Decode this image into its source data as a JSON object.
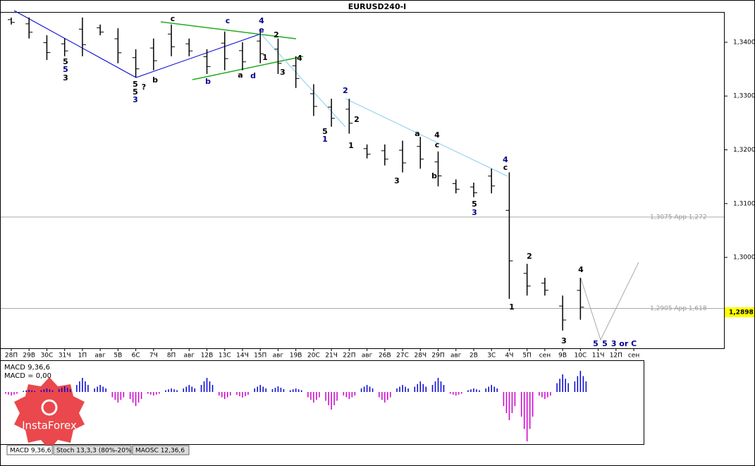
{
  "chart_data": {
    "type": "ohlc",
    "title": "EURUSD240-I",
    "categories": [
      "28П",
      "29В",
      "30С",
      "31Ч",
      "1П",
      "авг",
      "5В",
      "6С",
      "7Ч",
      "8П",
      "авг",
      "12В",
      "13С",
      "14Ч",
      "15П",
      "авг",
      "19В",
      "20С",
      "21Ч",
      "22П",
      "авг",
      "26В",
      "27С",
      "28Ч",
      "29П",
      "авг",
      "2В",
      "3С",
      "4Ч",
      "5П",
      "сен",
      "9В",
      "10С",
      "11Ч",
      "12П",
      "сен"
    ],
    "high": [
      1.3446,
      1.3446,
      1.3413,
      1.3407,
      1.3446,
      1.3433,
      1.3426,
      1.3387,
      1.3407,
      1.3433,
      1.3407,
      1.3387,
      1.342,
      1.34,
      1.342,
      1.3407,
      1.3374,
      1.3322,
      1.3295,
      1.3295,
      1.321,
      1.321,
      1.3217,
      1.3224,
      1.3197,
      1.3145,
      1.3139,
      1.3165,
      1.3158,
      1.2988,
      1.2962,
      1.2929,
      1.2962,
      null,
      null,
      null
    ],
    "low": [
      1.3433,
      1.3407,
      1.3367,
      1.3374,
      1.3374,
      1.3413,
      1.3361,
      1.3335,
      1.3348,
      1.3374,
      1.3374,
      1.3341,
      1.3348,
      1.3348,
      1.3361,
      1.3341,
      1.3315,
      1.3263,
      1.3243,
      1.323,
      1.3184,
      1.3171,
      1.3158,
      1.3165,
      1.3132,
      1.3119,
      1.3112,
      1.3119,
      1.2923,
      1.2929,
      1.2929,
      1.2864,
      1.2884,
      null,
      null,
      null
    ],
    "color": "#000000",
    "ylim": [
      1.2831,
      1.3455
    ],
    "yticks": [
      {
        "value": 1.34,
        "label": "1,3400"
      },
      {
        "value": 1.33,
        "label": "1,3300"
      },
      {
        "value": 1.32,
        "label": "1,3200"
      },
      {
        "value": 1.31,
        "label": "1,3100"
      },
      {
        "value": 1.3,
        "label": "1,3000"
      }
    ],
    "levels": [
      {
        "value": 1.3075,
        "label": "1,3075 App 1,272"
      },
      {
        "value": 1.2905,
        "label": "1,2905 App 1,618"
      }
    ],
    "last_price": {
      "value": 1.2898,
      "label": "1,2898",
      "color": "#ffff00"
    },
    "annotations": [
      {
        "text": "5",
        "color": "#000"
      },
      {
        "text": "5",
        "color": "#00008b"
      },
      {
        "text": "3",
        "color": "#000"
      },
      {
        "text": "5",
        "color": "#000"
      },
      {
        "text": "5",
        "color": "#000"
      },
      {
        "text": "?",
        "color": "#000"
      },
      {
        "text": "3",
        "color": "#00008b"
      },
      {
        "text": "b",
        "color": "#000"
      },
      {
        "text": "c",
        "color": "#000"
      },
      {
        "text": "c",
        "color": "#00008b"
      },
      {
        "text": "4",
        "color": "#00008b"
      },
      {
        "text": "e",
        "color": "#00008b"
      },
      {
        "text": "d",
        "color": "#00008b"
      },
      {
        "text": "b",
        "color": "#00008b"
      },
      {
        "text": "a",
        "color": "#000"
      },
      {
        "text": "2",
        "color": "#000"
      },
      {
        "text": "1",
        "color": "#000"
      },
      {
        "text": "3",
        "color": "#000"
      },
      {
        "text": "4",
        "color": "#000"
      },
      {
        "text": "2",
        "color": "#00008b"
      },
      {
        "text": "5",
        "color": "#000"
      },
      {
        "text": "1",
        "color": "#00008b"
      },
      {
        "text": "1",
        "color": "#000"
      },
      {
        "text": "2",
        "color": "#000"
      },
      {
        "text": "a",
        "color": "#000"
      },
      {
        "text": "4",
        "color": "#000"
      },
      {
        "text": "c",
        "color": "#000"
      },
      {
        "text": "b",
        "color": "#000"
      },
      {
        "text": "3",
        "color": "#000"
      },
      {
        "text": "4",
        "color": "#00008b"
      },
      {
        "text": "c",
        "color": "#000"
      },
      {
        "text": "5",
        "color": "#000"
      },
      {
        "text": "3",
        "color": "#00008b"
      },
      {
        "text": "2",
        "color": "#000"
      },
      {
        "text": "4",
        "color": "#000"
      },
      {
        "text": "1",
        "color": "#000"
      },
      {
        "text": "3",
        "color": "#000"
      },
      {
        "text": "5",
        "color": "#00008b"
      },
      {
        "text": "5",
        "color": "#00008b"
      },
      {
        "text": "3 or C",
        "color": "#00008b"
      }
    ],
    "macd": {
      "name": "MACD 9,36,6",
      "value_text": "MACD = 0,00",
      "color": "#0000cd",
      "neg_color": "#cc00cc",
      "ylim": [
        -0.0037,
        0.00215
      ],
      "values": [
        -0.00025,
        0.00015,
        0.00025,
        0.0004,
        0.001,
        0.0005,
        -0.00075,
        -0.001,
        -0.00025,
        0.00025,
        0.0005,
        0.001,
        -0.0005,
        -0.0004,
        0.0005,
        0.0004,
        0.00025,
        -0.00075,
        -0.00125,
        -0.0005,
        0.0005,
        -0.00075,
        0.0005,
        0.00075,
        0.001,
        -0.00025,
        0.00025,
        0.0005,
        -0.002,
        -0.0035,
        -0.0005,
        0.00125,
        0.0015,
        null,
        null,
        null
      ]
    },
    "tabs": [
      "MACD 9,36,6",
      "Stoch 13,3,3 (80%-20%)",
      "MAOSC 12,36,6"
    ],
    "logo": "InstaForex"
  }
}
